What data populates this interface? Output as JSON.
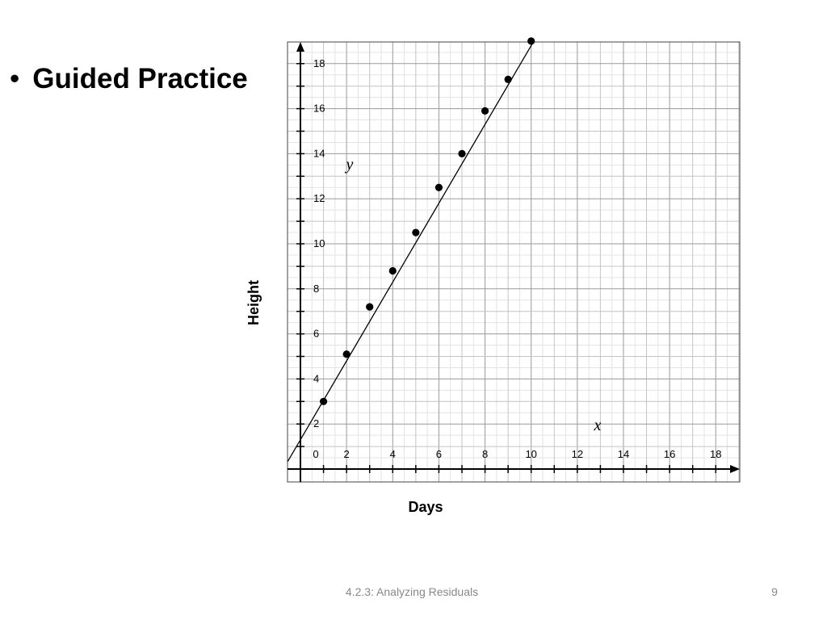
{
  "slide": {
    "bullet_text": "Guided Practice",
    "footer": "4.2.3: Analyzing Residuals",
    "page_number": "9"
  },
  "chart_data": {
    "type": "scatter",
    "xlabel": "Days",
    "ylabel": "Height",
    "x_variable": "x",
    "y_variable": "y",
    "xlim": [
      -0.5,
      19
    ],
    "ylim": [
      -0.6,
      19
    ],
    "x_ticks": [
      0,
      2,
      4,
      6,
      8,
      10,
      12,
      14,
      16,
      18
    ],
    "y_ticks": [
      2,
      4,
      6,
      8,
      10,
      12,
      14,
      16,
      18
    ],
    "grid": true,
    "points": [
      {
        "x": 1,
        "y": 3.0
      },
      {
        "x": 2,
        "y": 5.1
      },
      {
        "x": 3,
        "y": 7.2
      },
      {
        "x": 4,
        "y": 8.8
      },
      {
        "x": 5,
        "y": 10.5
      },
      {
        "x": 6,
        "y": 12.5
      },
      {
        "x": 7,
        "y": 14.0
      },
      {
        "x": 8,
        "y": 15.9
      },
      {
        "x": 9,
        "y": 17.3
      },
      {
        "x": 10,
        "y": 19.0
      }
    ],
    "trend_line": {
      "slope": 1.75,
      "intercept": 1.3
    }
  }
}
